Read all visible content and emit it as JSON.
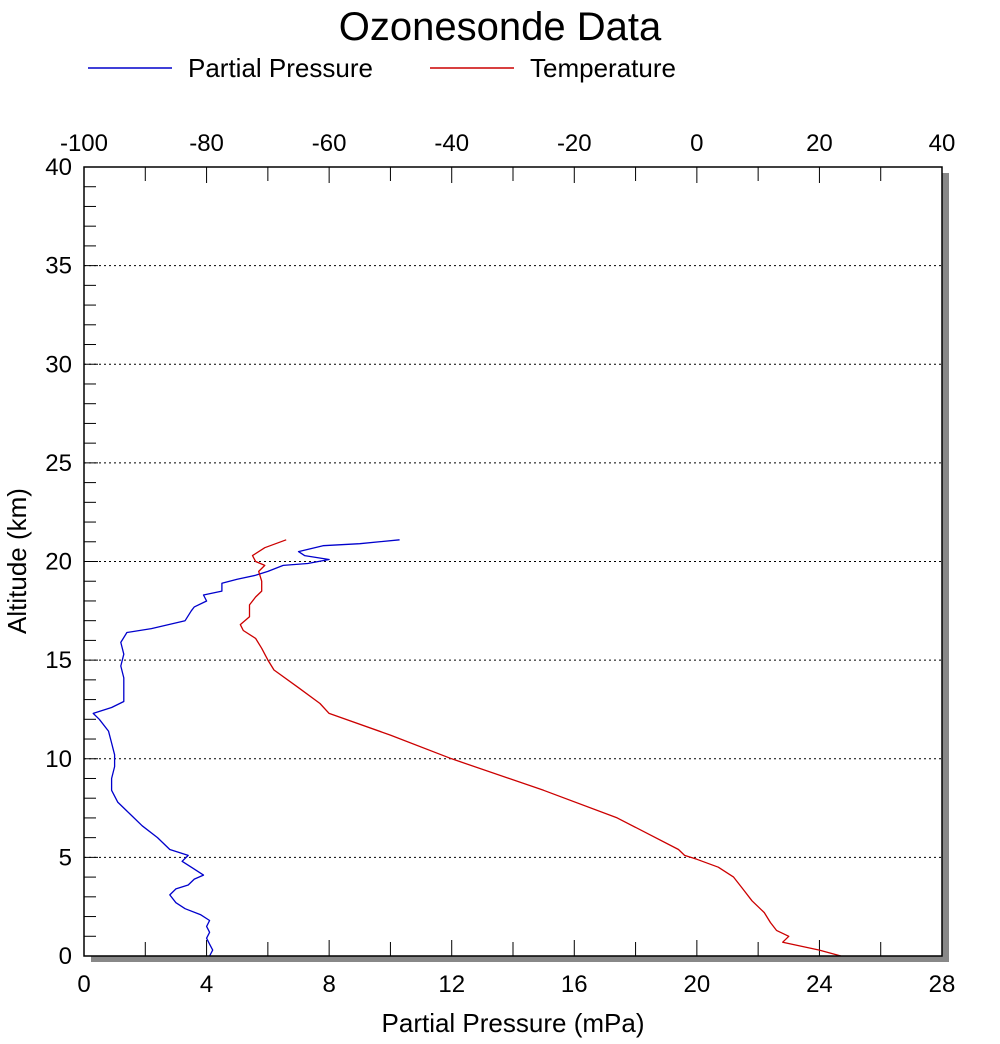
{
  "chart_data": {
    "type": "line",
    "title": "Ozonesonde Data",
    "xlabel": "Partial Pressure (mPa)",
    "ylabel": "Altitude (km)",
    "x_bottom": {
      "min": 0,
      "max": 28,
      "ticks": [
        0,
        4,
        8,
        12,
        16,
        20,
        24,
        28
      ],
      "labels": [
        "0",
        "4",
        "8",
        "12",
        "16",
        "20",
        "24",
        "28"
      ]
    },
    "x_top": {
      "min": -100,
      "max": 40,
      "ticks": [
        -100,
        -80,
        -60,
        -40,
        -20,
        0,
        20,
        40
      ],
      "labels": [
        "-100",
        "-80",
        "-60",
        "-40",
        "-20",
        "0",
        "20",
        "40"
      ]
    },
    "y": {
      "min": 0,
      "max": 40,
      "ticks": [
        0,
        5,
        10,
        15,
        20,
        25,
        30,
        35,
        40
      ],
      "labels": [
        "0",
        "5",
        "10",
        "15",
        "20",
        "25",
        "30",
        "35",
        "40"
      ]
    },
    "grid": "horizontal dotted",
    "legend": [
      {
        "label": "Partial Pressure",
        "color": "#0000cc"
      },
      {
        "label": "Temperature",
        "color": "#cc0000"
      }
    ],
    "series": [
      {
        "name": "Partial Pressure",
        "axis": "bottom",
        "color": "#0000cc",
        "points": [
          [
            4.1,
            0.0
          ],
          [
            4.2,
            0.3
          ],
          [
            4.1,
            0.6
          ],
          [
            4.0,
            0.9
          ],
          [
            4.1,
            1.2
          ],
          [
            4.0,
            1.5
          ],
          [
            4.1,
            1.8
          ],
          [
            3.8,
            2.1
          ],
          [
            3.3,
            2.4
          ],
          [
            3.0,
            2.7
          ],
          [
            2.8,
            3.1
          ],
          [
            3.0,
            3.4
          ],
          [
            3.4,
            3.6
          ],
          [
            3.6,
            3.9
          ],
          [
            3.9,
            4.1
          ],
          [
            3.5,
            4.5
          ],
          [
            3.2,
            4.8
          ],
          [
            3.4,
            5.1
          ],
          [
            2.8,
            5.4
          ],
          [
            2.4,
            6.0
          ],
          [
            1.9,
            6.6
          ],
          [
            1.5,
            7.2
          ],
          [
            1.1,
            7.8
          ],
          [
            0.9,
            8.4
          ],
          [
            0.9,
            9.0
          ],
          [
            1.0,
            9.6
          ],
          [
            1.0,
            10.2
          ],
          [
            0.9,
            10.8
          ],
          [
            0.8,
            11.4
          ],
          [
            0.5,
            12.0
          ],
          [
            0.3,
            12.3
          ],
          [
            0.9,
            12.6
          ],
          [
            1.3,
            12.9
          ],
          [
            1.3,
            13.5
          ],
          [
            1.3,
            14.1
          ],
          [
            1.2,
            14.7
          ],
          [
            1.3,
            15.3
          ],
          [
            1.2,
            15.9
          ],
          [
            1.4,
            16.4
          ],
          [
            2.2,
            16.6
          ],
          [
            3.3,
            17.0
          ],
          [
            3.5,
            17.5
          ],
          [
            3.6,
            17.7
          ],
          [
            4.0,
            18.0
          ],
          [
            3.9,
            18.3
          ],
          [
            4.5,
            18.5
          ],
          [
            4.5,
            18.9
          ],
          [
            5.0,
            19.1
          ],
          [
            5.6,
            19.3
          ],
          [
            6.0,
            19.5
          ],
          [
            6.5,
            19.8
          ],
          [
            7.3,
            19.9
          ],
          [
            8.0,
            20.1
          ],
          [
            7.2,
            20.3
          ],
          [
            7.0,
            20.5
          ],
          [
            7.8,
            20.8
          ],
          [
            9.0,
            20.9
          ],
          [
            10.3,
            21.1
          ]
        ]
      },
      {
        "name": "Temperature",
        "axis": "top",
        "color": "#cc0000",
        "points": [
          [
            23.5,
            0.0
          ],
          [
            20.0,
            0.3
          ],
          [
            14.0,
            0.7
          ],
          [
            15.0,
            1.0
          ],
          [
            13.0,
            1.3
          ],
          [
            12.0,
            1.7
          ],
          [
            11.0,
            2.2
          ],
          [
            9.0,
            2.8
          ],
          [
            7.5,
            3.4
          ],
          [
            6.0,
            4.0
          ],
          [
            3.5,
            4.5
          ],
          [
            0.0,
            4.9
          ],
          [
            -2.0,
            5.1
          ],
          [
            -3.0,
            5.4
          ],
          [
            -13.0,
            7.0
          ],
          [
            -25.0,
            8.4
          ],
          [
            -40.0,
            10.0
          ],
          [
            -50.0,
            11.2
          ],
          [
            -60.0,
            12.3
          ],
          [
            -61.5,
            12.8
          ],
          [
            -65.0,
            13.6
          ],
          [
            -69.0,
            14.5
          ],
          [
            -70.0,
            15.0
          ],
          [
            -71.0,
            15.6
          ],
          [
            -72.0,
            16.1
          ],
          [
            -74.0,
            16.5
          ],
          [
            -74.5,
            16.8
          ],
          [
            -73.0,
            17.2
          ],
          [
            -73.0,
            17.8
          ],
          [
            -72.0,
            18.2
          ],
          [
            -71.0,
            18.5
          ],
          [
            -71.0,
            19.0
          ],
          [
            -71.5,
            19.5
          ],
          [
            -70.5,
            19.8
          ],
          [
            -72.0,
            20.0
          ],
          [
            -72.5,
            20.3
          ],
          [
            -70.5,
            20.7
          ],
          [
            -67.0,
            21.1
          ]
        ]
      }
    ]
  }
}
